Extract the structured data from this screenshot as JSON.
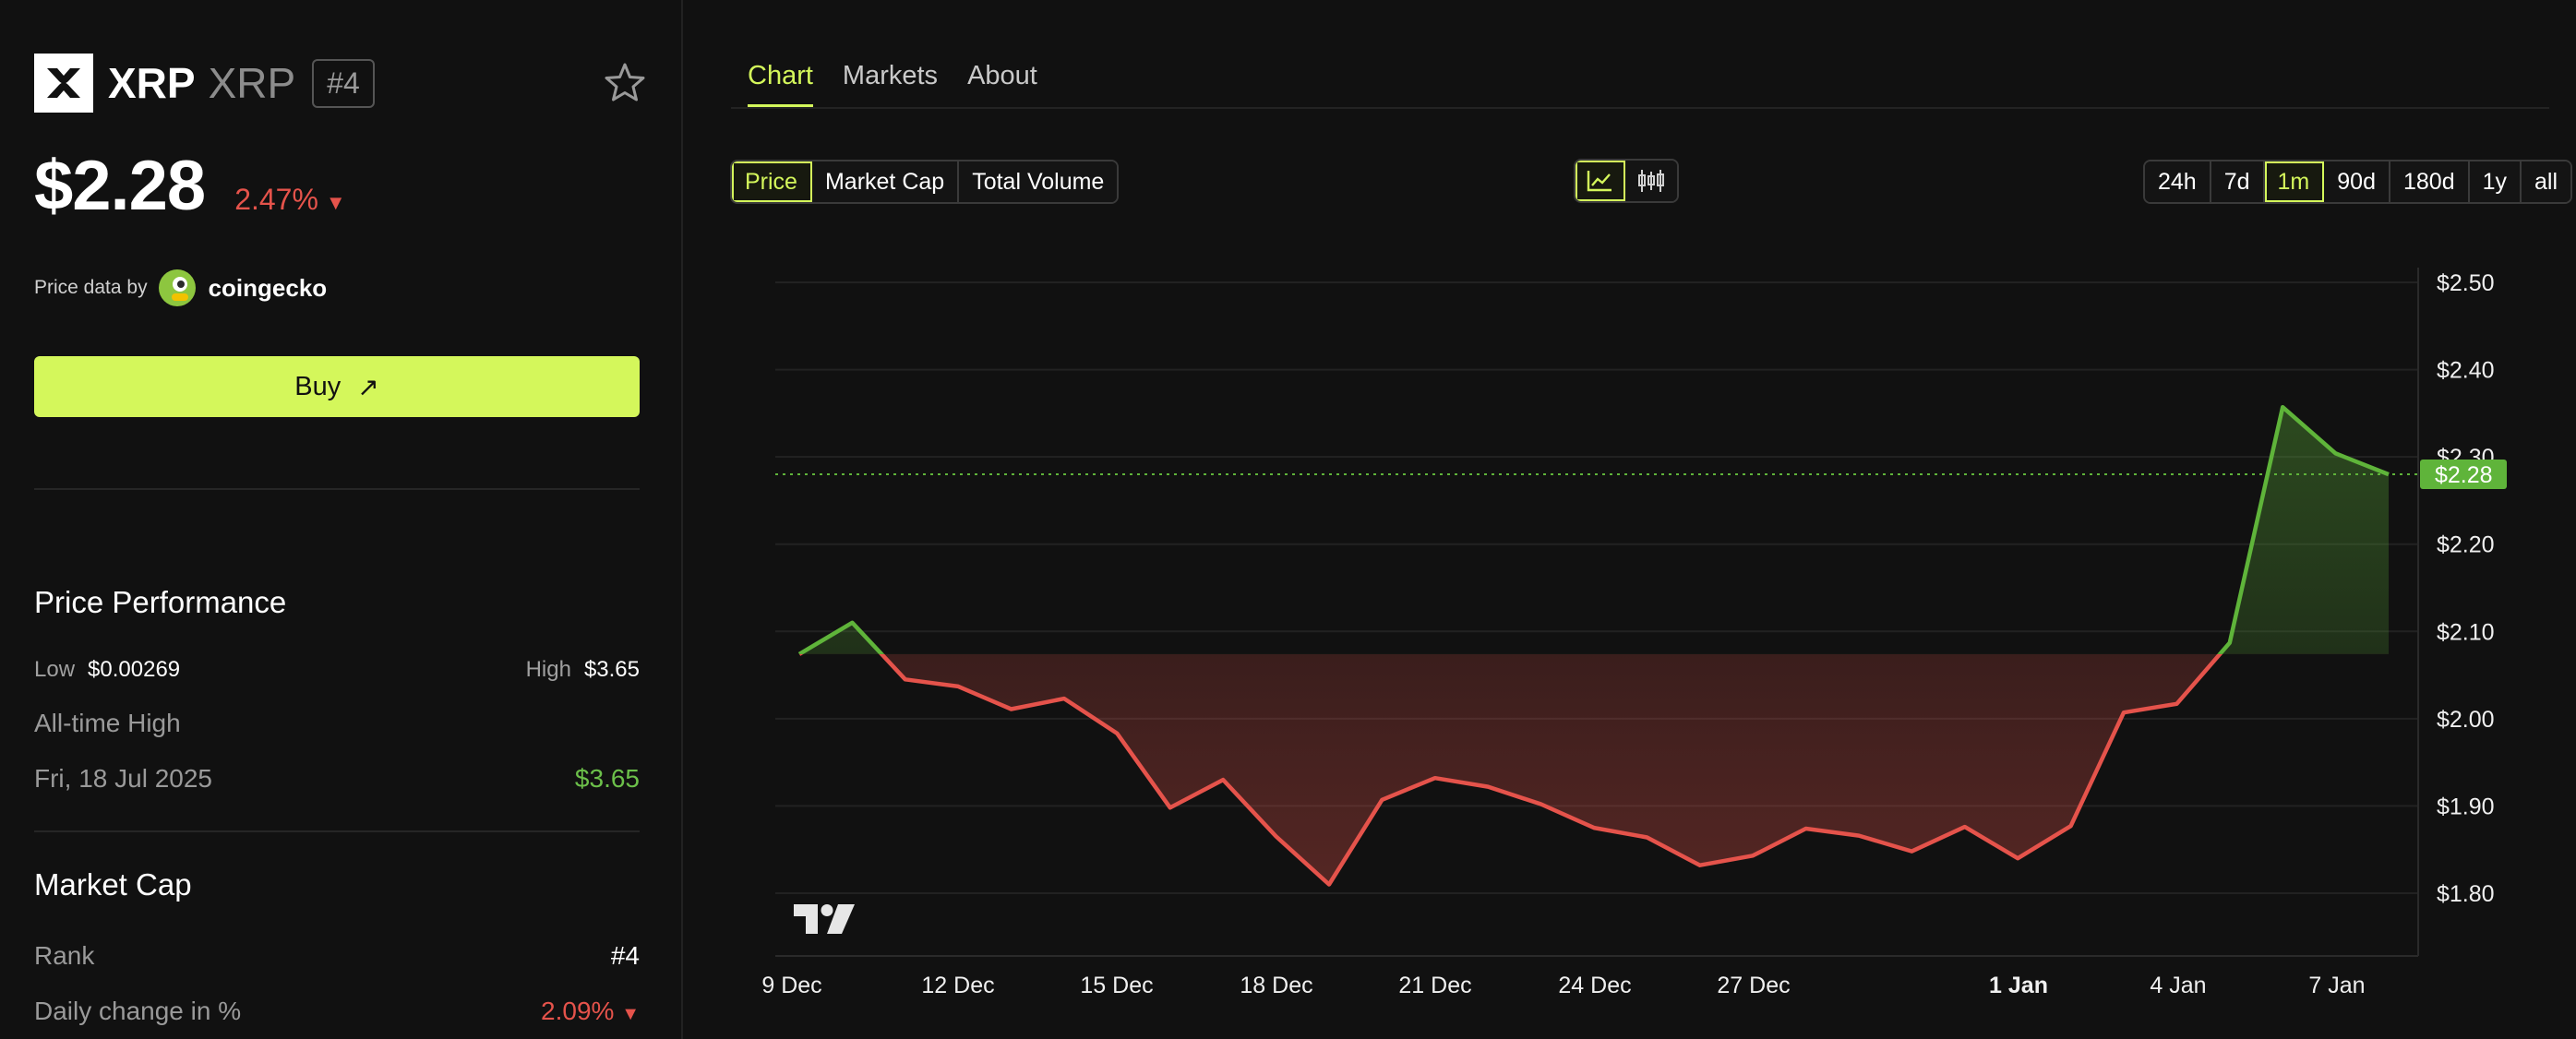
{
  "coin": {
    "name": "XRP",
    "symbol": "XRP",
    "rank_badge": "#4",
    "price": "$2.28",
    "change": "2.47%",
    "change_dir_icon": "triangle-down-icon"
  },
  "price_source": {
    "label": "Price data by",
    "brand": "coingecko"
  },
  "buy": {
    "label": "Buy"
  },
  "performance": {
    "title": "Price Performance",
    "low_label": "Low",
    "low_value": "$0.00269",
    "high_label": "High",
    "high_value": "$3.65",
    "ath_label": "All-time High",
    "ath_date": "Fri, 18 Jul 2025",
    "ath_value": "$3.65"
  },
  "market_cap": {
    "title": "Market Cap",
    "rank_label": "Rank",
    "rank_value": "#4",
    "daily_change_label": "Daily change in %",
    "daily_change_value": "2.09%"
  },
  "tabs": [
    "Chart",
    "Markets",
    "About"
  ],
  "active_tab": "Chart",
  "metric_buttons": [
    "Price",
    "Market Cap",
    "Total Volume"
  ],
  "active_metric": "Price",
  "chart_type_icons": [
    "line-chart-icon",
    "candlestick-icon"
  ],
  "range_buttons": [
    "24h",
    "7d",
    "1m",
    "90d",
    "180d",
    "1y",
    "all"
  ],
  "active_range": "1m",
  "colors": {
    "accent": "#d4f75b",
    "up": "#5fb43a",
    "down": "#e5534b",
    "background": "#111111"
  },
  "chart_data": {
    "type": "line",
    "series": [
      {
        "values": [
          2.074,
          2.11,
          2.045,
          2.037,
          2.011,
          2.023,
          1.983,
          1.898,
          1.93,
          1.865,
          1.81,
          1.907,
          1.932,
          1.922,
          1.902,
          1.875,
          1.864,
          1.832,
          1.843,
          1.874,
          1.866,
          1.848,
          1.876,
          1.84,
          1.877,
          2.007,
          2.017,
          2.087,
          2.357,
          2.304,
          2.28
        ]
      }
    ],
    "x_tick_labels": [
      "9 Dec",
      "12 Dec",
      "15 Dec",
      "18 Dec",
      "21 Dec",
      "24 Dec",
      "27 Dec",
      "1 Jan",
      "4 Jan",
      "7 Jan"
    ],
    "y_tick_labels": [
      "$1.80",
      "$1.90",
      "$2.00",
      "$2.10",
      "$2.20",
      "$2.30",
      "$2.40",
      "$2.50"
    ],
    "ylim": [
      1.75,
      2.5
    ],
    "baseline": 2.074,
    "current_value": 2.28,
    "current_label": "$2.28",
    "grid": true
  }
}
